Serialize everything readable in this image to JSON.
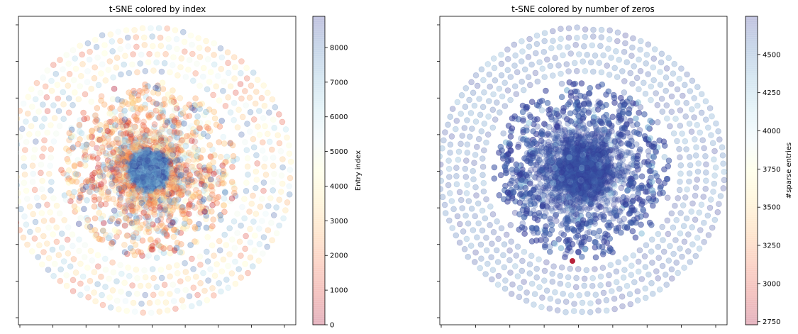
{
  "chart_data": [
    {
      "type": "scatter",
      "title": "t-SNE colored by index",
      "xlabel": "",
      "ylabel": "",
      "x_tick_labels_visible": false,
      "y_tick_labels_visible": false,
      "grid": false,
      "colormap": "RdYlBu",
      "point_alpha": 0.25,
      "colorbar": {
        "label": "Entry index",
        "range": [
          0,
          8900
        ],
        "ticks": [
          0,
          1000,
          2000,
          3000,
          4000,
          5000,
          6000,
          7000,
          8000
        ],
        "tick_labels": [
          "0",
          "1000",
          "2000",
          "3000",
          "4000",
          "5000",
          "6000",
          "7000",
          "8000"
        ]
      },
      "structure": {
        "dense_core": "mixed colors across full index range, centered slightly left of middle",
        "outer_ring": "sparse points arranged in concentric circles, pale yellow/red/blue"
      }
    },
    {
      "type": "scatter",
      "title": "t-SNE colored by number of zeros",
      "xlabel": "",
      "ylabel": "",
      "x_tick_labels_visible": false,
      "y_tick_labels_visible": false,
      "grid": false,
      "colormap": "RdYlBu",
      "point_alpha": 0.25,
      "colorbar": {
        "label": "#sparse entries",
        "range": [
          2730,
          4750
        ],
        "ticks": [
          2750,
          3000,
          3250,
          3500,
          3750,
          4000,
          4250,
          4500
        ],
        "tick_labels": [
          "2750",
          "3000",
          "3250",
          "3500",
          "3750",
          "4000",
          "4250",
          "4500"
        ]
      },
      "structure": {
        "dense_core": "dark blue (high sparse count ~4500+)",
        "outer_ring": "pale lavender points in concentric circles (~4400-4700)",
        "outliers": "single red point near bottom of core (~2750)"
      }
    }
  ],
  "colors": {
    "axis": "#000000",
    "background": "#ffffff"
  }
}
